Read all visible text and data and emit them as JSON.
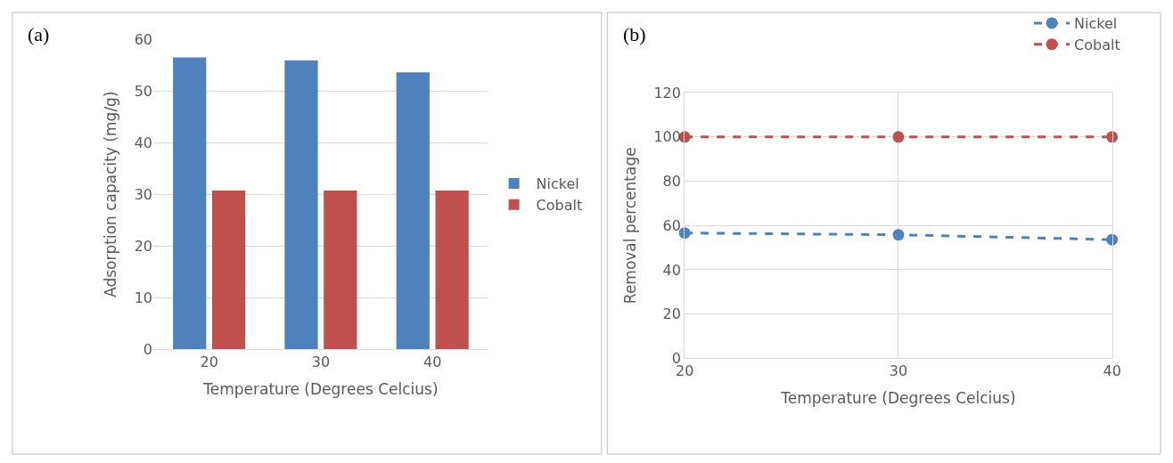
{
  "chart_data": [
    {
      "type": "bar",
      "title": "(a)",
      "xlabel": "Temperature (Degrees Celcius)",
      "ylabel": "Adsorption capacity (mg/g)",
      "categories": [
        "20",
        "30",
        "40"
      ],
      "series": [
        {
          "name": "Nickel",
          "color": "#4f81bd",
          "values": [
            56.5,
            55.9,
            53.6
          ]
        },
        {
          "name": "Cobalt",
          "color": "#c0504d",
          "values": [
            30.7,
            30.7,
            30.7
          ]
        }
      ],
      "ylim": [
        0,
        60
      ],
      "yticks": [
        0,
        10,
        20,
        30,
        40,
        50,
        60
      ],
      "grid": "y",
      "legend": "right"
    },
    {
      "type": "line",
      "title": "(b)",
      "xlabel": "Temperature (Degrees Celcius)",
      "ylabel": "Removal percentage",
      "x": [
        20,
        30,
        40
      ],
      "series": [
        {
          "name": "Nickel",
          "color": "#4f81bd",
          "values": [
            56.6,
            55.8,
            53.6
          ]
        },
        {
          "name": "Cobalt",
          "color": "#c0504d",
          "values": [
            100,
            100,
            100
          ]
        }
      ],
      "xlim": [
        20,
        40
      ],
      "xticks": [
        20,
        30,
        40
      ],
      "ylim": [
        0,
        120
      ],
      "yticks": [
        0,
        20,
        40,
        60,
        80,
        100,
        120
      ],
      "grid": true,
      "legend": "top right",
      "marker": "circle",
      "line_style": "dashed"
    }
  ]
}
